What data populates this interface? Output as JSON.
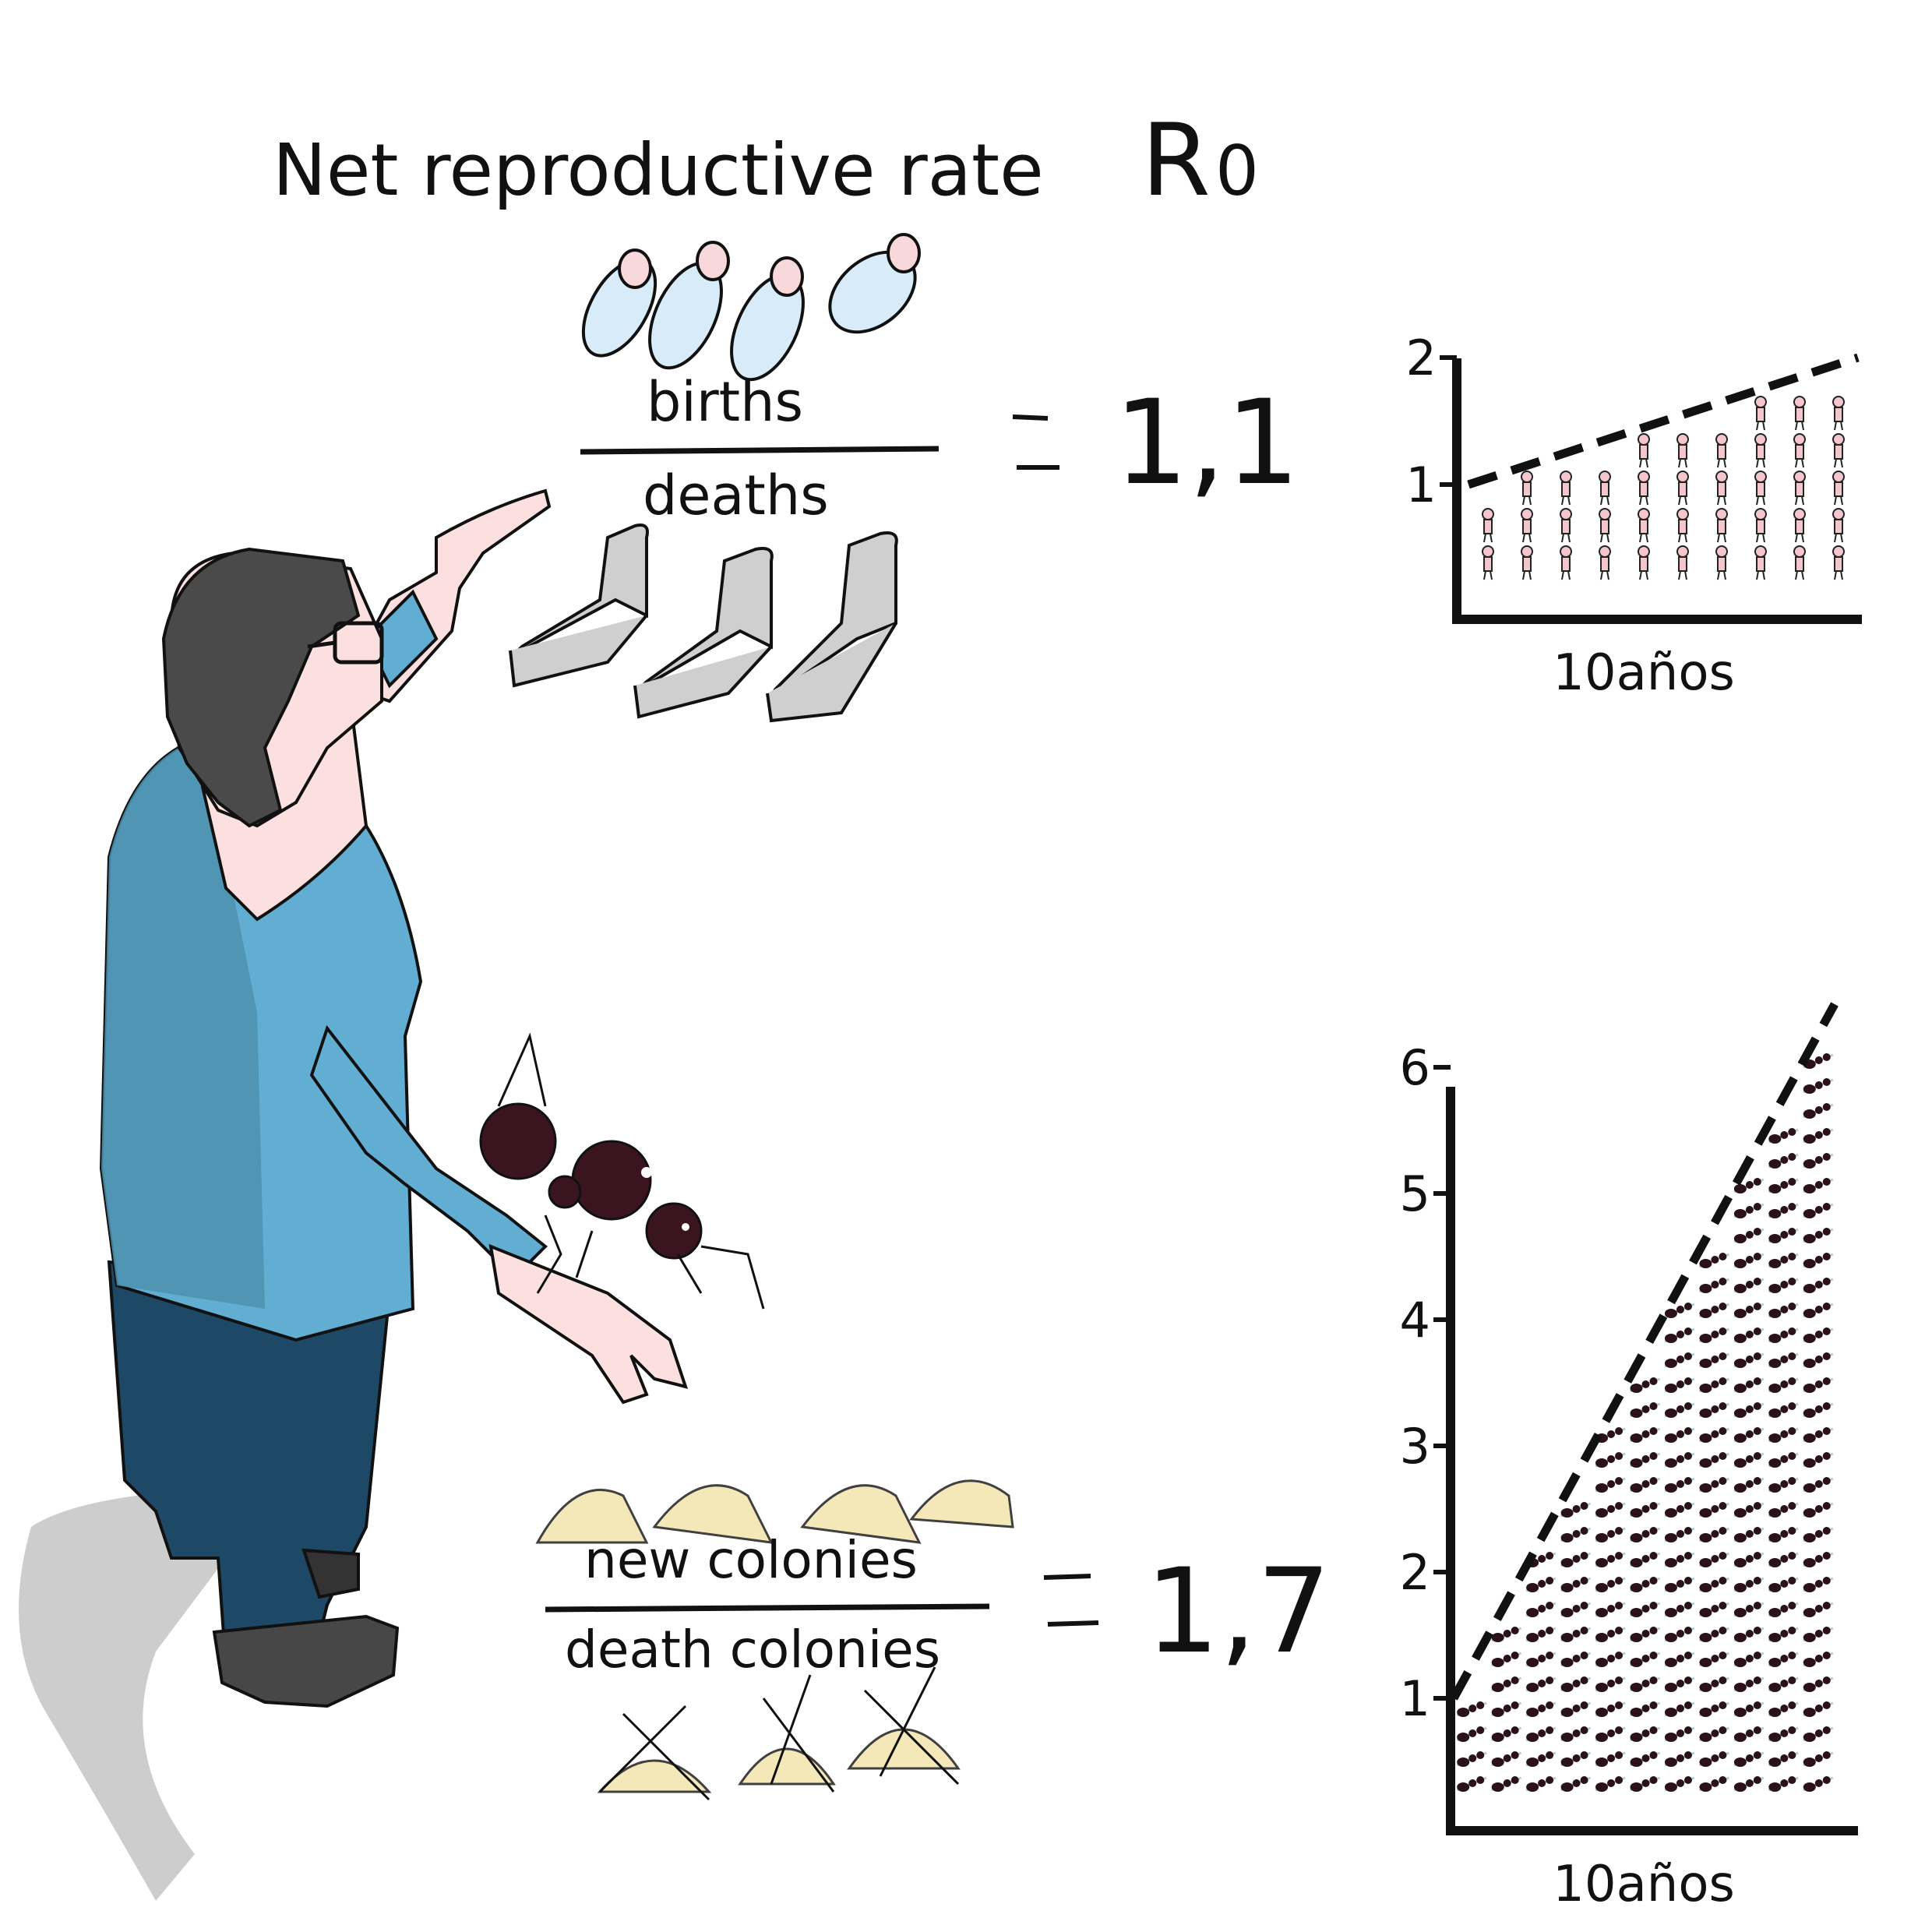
{
  "title": {
    "text": "Net reproductive rate",
    "symbol": "R",
    "subscript": "0"
  },
  "fraction_humans": {
    "numerator": "births",
    "denominator": "deaths",
    "equals": "=",
    "value": "1,1"
  },
  "fraction_ants": {
    "numerator": "new colonies",
    "denominator": "death colonies",
    "equals": "=",
    "value": "1,7"
  },
  "chart_data": [
    {
      "type": "line",
      "xlabel": "10años",
      "ylabel": "",
      "ylim": [
        0,
        2
      ],
      "y_ticks": [
        "1",
        "2"
      ],
      "series": [
        {
          "x": [
            0,
            10
          ],
          "values": [
            1.0,
            2.0
          ]
        }
      ],
      "line_style": "dashed",
      "fill_icons": "human"
    },
    {
      "type": "line",
      "xlabel": "10años",
      "ylabel": "",
      "ylim": [
        0,
        6
      ],
      "y_ticks": [
        "1",
        "2",
        "3",
        "4",
        "5",
        "6"
      ],
      "series": [
        {
          "x": [
            0,
            10
          ],
          "values": [
            1.0,
            6.5
          ]
        }
      ],
      "line_style": "dashed",
      "fill_icons": "ant"
    }
  ],
  "colors": {
    "shirt": "#62aed3",
    "pants": "#1e4966",
    "hair": "#4a4a4a",
    "skin": "#fbe0df",
    "ant": "#3a1520",
    "mound": "#f3e3a7",
    "baby_body": "#d7ecf8",
    "baby_head": "#f8d8da",
    "bed": "#cfcfcf"
  }
}
